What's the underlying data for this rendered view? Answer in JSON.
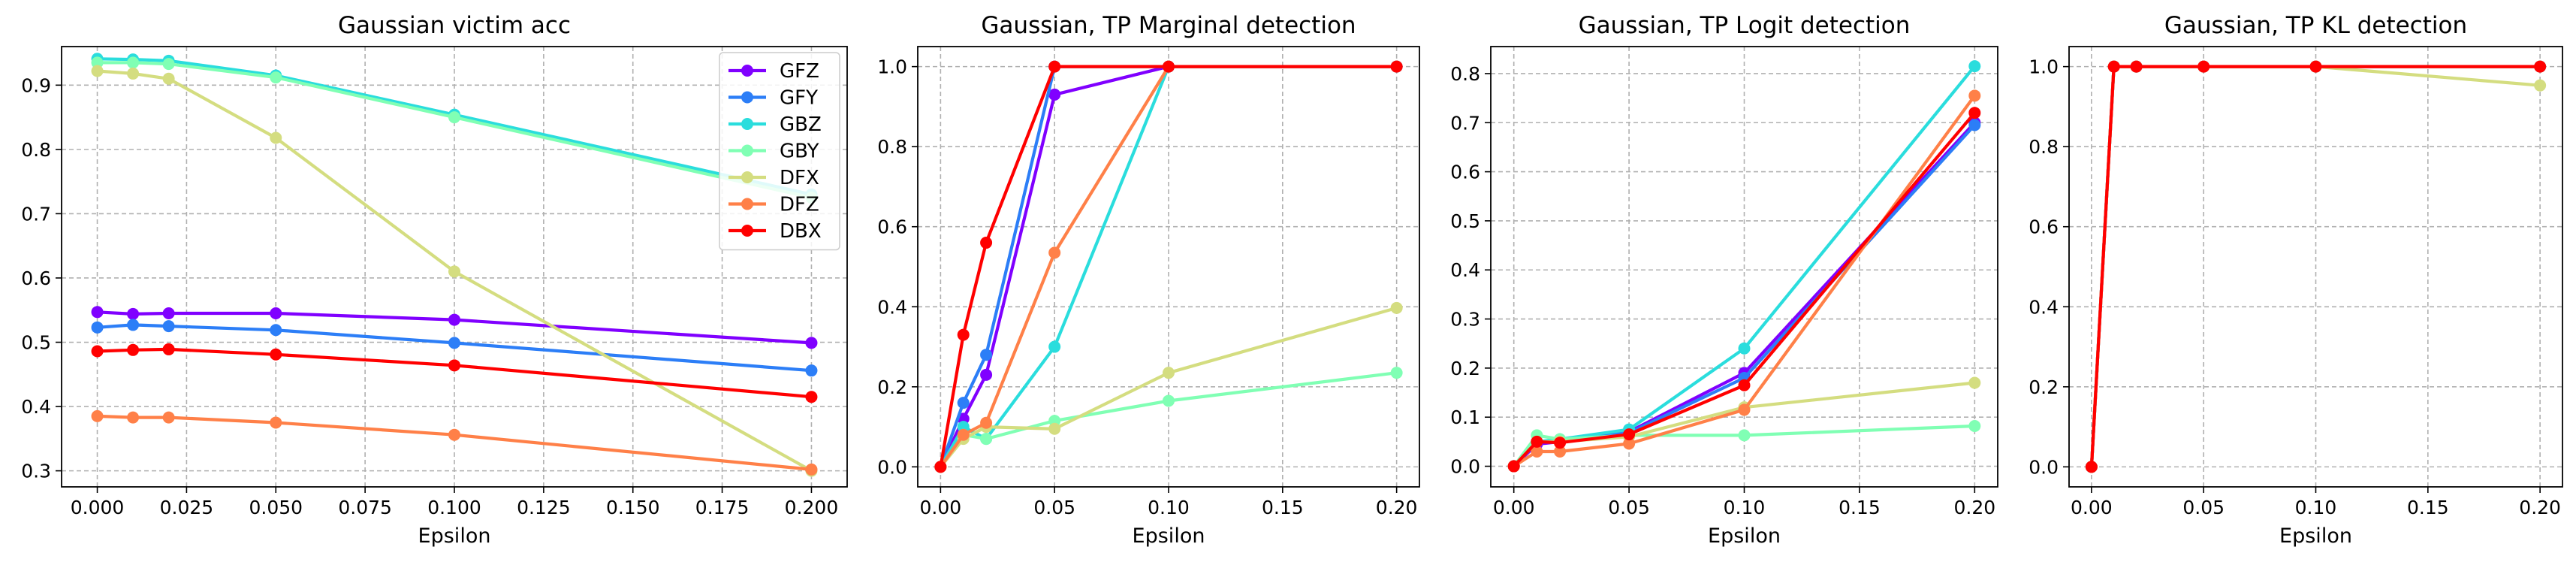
{
  "chart_data": [
    {
      "type": "line",
      "title": "Gaussian victim acc",
      "xlabel": "Epsilon",
      "ylabel": "",
      "x": [
        0,
        0.01,
        0.02,
        0.05,
        0.1,
        0.2
      ],
      "xlim": [
        -0.01,
        0.21
      ],
      "ylim": [
        0.275,
        0.96
      ],
      "xticks": [
        "0.000",
        "0.025",
        "0.050",
        "0.075",
        "0.100",
        "0.125",
        "0.150",
        "0.175",
        "0.200"
      ],
      "yticks": [
        "0.3",
        "0.4",
        "0.5",
        "0.6",
        "0.7",
        "0.8",
        "0.9"
      ],
      "grid": true,
      "legend": "top-right",
      "series": [
        {
          "name": "GFZ",
          "color": "#8000ff",
          "values": [
            0.547,
            0.544,
            0.545,
            0.545,
            0.535,
            0.499
          ]
        },
        {
          "name": "GFY",
          "color": "#2c7ef7",
          "values": [
            0.523,
            0.527,
            0.525,
            0.519,
            0.499,
            0.456
          ]
        },
        {
          "name": "GBZ",
          "color": "#2adddd",
          "values": [
            0.941,
            0.94,
            0.938,
            0.915,
            0.854,
            0.73
          ]
        },
        {
          "name": "GBY",
          "color": "#80ffb4",
          "values": [
            0.935,
            0.935,
            0.933,
            0.912,
            0.85,
            0.725
          ]
        },
        {
          "name": "DFX",
          "color": "#d4dd80",
          "values": [
            0.922,
            0.918,
            0.91,
            0.818,
            0.61,
            0.3
          ]
        },
        {
          "name": "DFZ",
          "color": "#ff8048",
          "values": [
            0.385,
            0.383,
            0.383,
            0.375,
            0.356,
            0.302
          ]
        },
        {
          "name": "DBX",
          "color": "#ff0000",
          "values": [
            0.486,
            0.488,
            0.489,
            0.481,
            0.464,
            0.415
          ]
        }
      ]
    },
    {
      "type": "line",
      "title": "Gaussian, TP Marginal detection",
      "xlabel": "Epsilon",
      "ylabel": "",
      "x": [
        0,
        0.01,
        0.02,
        0.05,
        0.1,
        0.2
      ],
      "xlim": [
        -0.01,
        0.21
      ],
      "ylim": [
        -0.05,
        1.05
      ],
      "xticks": [
        "0.00",
        "0.05",
        "0.10",
        "0.15",
        "0.20"
      ],
      "yticks": [
        "0.0",
        "0.2",
        "0.4",
        "0.6",
        "0.8",
        "1.0"
      ],
      "grid": true,
      "series": [
        {
          "name": "GFZ",
          "color": "#8000ff",
          "values": [
            0.0,
            0.12,
            0.23,
            0.93,
            1.0,
            1.0
          ]
        },
        {
          "name": "GFY",
          "color": "#2c7ef7",
          "values": [
            0.0,
            0.16,
            0.28,
            1.0,
            1.0,
            1.0
          ]
        },
        {
          "name": "GBZ",
          "color": "#2adddd",
          "values": [
            0.0,
            0.1,
            0.07,
            0.3,
            1.0,
            1.0
          ]
        },
        {
          "name": "GBY",
          "color": "#80ffb4",
          "values": [
            0.0,
            0.08,
            0.07,
            0.115,
            0.165,
            0.235
          ]
        },
        {
          "name": "DFX",
          "color": "#d4dd80",
          "values": [
            0.0,
            0.07,
            0.1,
            0.095,
            0.235,
            0.397
          ]
        },
        {
          "name": "DFZ",
          "color": "#ff8048",
          "values": [
            0.0,
            0.08,
            0.11,
            0.535,
            1.0,
            1.0
          ]
        },
        {
          "name": "DBX",
          "color": "#ff0000",
          "values": [
            0.0,
            0.33,
            0.56,
            1.0,
            1.0,
            1.0
          ]
        }
      ]
    },
    {
      "type": "line",
      "title": "Gaussian, TP Logit detection",
      "xlabel": "Epsilon",
      "ylabel": "",
      "x": [
        0,
        0.01,
        0.02,
        0.05,
        0.1,
        0.2
      ],
      "xlim": [
        -0.01,
        0.21
      ],
      "ylim": [
        -0.042,
        0.855
      ],
      "xticks": [
        "0.00",
        "0.05",
        "0.10",
        "0.15",
        "0.20"
      ],
      "yticks": [
        "0.0",
        "0.1",
        "0.2",
        "0.3",
        "0.4",
        "0.5",
        "0.6",
        "0.7",
        "0.8"
      ],
      "grid": true,
      "series": [
        {
          "name": "GFZ",
          "color": "#8000ff",
          "values": [
            0.0,
            0.045,
            0.05,
            0.07,
            0.19,
            0.7
          ]
        },
        {
          "name": "GFY",
          "color": "#2c7ef7",
          "values": [
            0.0,
            0.05,
            0.052,
            0.068,
            0.18,
            0.695
          ]
        },
        {
          "name": "GBZ",
          "color": "#2adddd",
          "values": [
            0.0,
            0.05,
            0.055,
            0.075,
            0.24,
            0.815
          ]
        },
        {
          "name": "GBY",
          "color": "#80ffb4",
          "values": [
            0.0,
            0.063,
            0.055,
            0.063,
            0.063,
            0.082
          ]
        },
        {
          "name": "DFX",
          "color": "#d4dd80",
          "values": [
            0.0,
            0.05,
            0.05,
            0.06,
            0.12,
            0.17
          ]
        },
        {
          "name": "DFZ",
          "color": "#ff8048",
          "values": [
            0.0,
            0.03,
            0.03,
            0.046,
            0.115,
            0.755
          ]
        },
        {
          "name": "DBX",
          "color": "#ff0000",
          "values": [
            0.0,
            0.05,
            0.048,
            0.065,
            0.165,
            0.72
          ]
        }
      ]
    },
    {
      "type": "line",
      "title": "Gaussian, TP KL detection",
      "xlabel": "Epsilon",
      "ylabel": "",
      "x": [
        0,
        0.01,
        0.02,
        0.05,
        0.1,
        0.2
      ],
      "xlim": [
        -0.01,
        0.21
      ],
      "ylim": [
        -0.05,
        1.05
      ],
      "xticks": [
        "0.00",
        "0.05",
        "0.10",
        "0.15",
        "0.20"
      ],
      "yticks": [
        "0.0",
        "0.2",
        "0.4",
        "0.6",
        "0.8",
        "1.0"
      ],
      "grid": true,
      "series": [
        {
          "name": "GFZ",
          "color": "#8000ff",
          "values": [
            0.0,
            1.0,
            1.0,
            1.0,
            1.0,
            1.0
          ]
        },
        {
          "name": "GFY",
          "color": "#2c7ef7",
          "values": [
            0.0,
            1.0,
            1.0,
            1.0,
            1.0,
            1.0
          ]
        },
        {
          "name": "GBZ",
          "color": "#2adddd",
          "values": [
            0.0,
            1.0,
            1.0,
            1.0,
            1.0,
            1.0
          ]
        },
        {
          "name": "GBY",
          "color": "#80ffb4",
          "values": [
            0.0,
            1.0,
            1.0,
            1.0,
            1.0,
            1.0
          ]
        },
        {
          "name": "DFX",
          "color": "#d4dd80",
          "values": [
            0.0,
            1.0,
            1.0,
            1.0,
            1.0,
            0.953
          ]
        },
        {
          "name": "DFZ",
          "color": "#ff8048",
          "values": [
            0.0,
            1.0,
            1.0,
            1.0,
            1.0,
            1.0
          ]
        },
        {
          "name": "DBX",
          "color": "#ff0000",
          "values": [
            0.0,
            1.0,
            1.0,
            1.0,
            1.0,
            1.0
          ]
        }
      ]
    }
  ]
}
